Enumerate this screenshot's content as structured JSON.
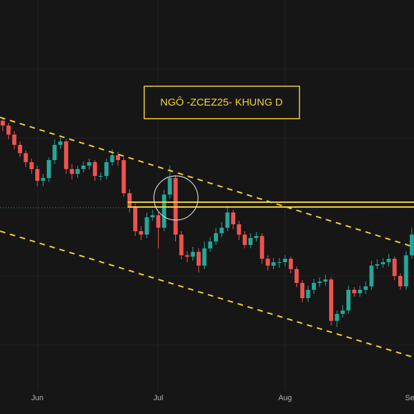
{
  "chart_data": {
    "type": "candlestick",
    "title": "NGÔ -ZCEZ25- KHUNG D",
    "categories": [
      null,
      null,
      null,
      null,
      null,
      null,
      "Jun",
      null,
      null,
      null,
      null,
      null,
      null,
      null,
      null,
      null,
      null,
      null,
      null,
      null,
      null,
      null,
      null,
      null,
      null,
      null,
      null,
      "Jul",
      null,
      null,
      null,
      null,
      null,
      null,
      null,
      null,
      null,
      null,
      null,
      null,
      null,
      null,
      null,
      null,
      null,
      null,
      null,
      null,
      null,
      "Aug",
      null,
      null,
      null,
      null,
      null,
      null,
      null,
      null,
      null,
      null,
      null,
      null,
      null,
      null,
      null,
      null,
      null,
      null,
      null,
      null,
      null,
      "Sep"
    ],
    "open": [
      425,
      418,
      405,
      390,
      378,
      365,
      355,
      338,
      342,
      368,
      390,
      395,
      355,
      348,
      355,
      360,
      365,
      345,
      345,
      365,
      375,
      368,
      320,
      300,
      265,
      260,
      285,
      288,
      270,
      318,
      342,
      260,
      230,
      228,
      235,
      215,
      240,
      250,
      262,
      270,
      292,
      275,
      260,
      245,
      255,
      258,
      225,
      215,
      220,
      220,
      225,
      210,
      190,
      168,
      180,
      190,
      192,
      195,
      135,
      145,
      150,
      180,
      175,
      180,
      185,
      215,
      217,
      220,
      225,
      200,
      185,
      230
    ],
    "high": [
      430,
      422,
      410,
      395,
      382,
      370,
      360,
      348,
      372,
      398,
      400,
      398,
      362,
      360,
      366,
      370,
      368,
      350,
      370,
      384,
      380,
      372,
      326,
      305,
      272,
      292,
      296,
      292,
      325,
      360,
      346,
      265,
      236,
      242,
      240,
      250,
      256,
      270,
      278,
      302,
      296,
      280,
      265,
      262,
      264,
      262,
      230,
      226,
      226,
      230,
      228,
      214,
      194,
      186,
      196,
      198,
      202,
      198,
      150,
      158,
      186,
      184,
      186,
      192,
      222,
      224,
      226,
      232,
      228,
      204,
      236,
      270
    ],
    "low": [
      410,
      398,
      384,
      372,
      358,
      348,
      330,
      330,
      336,
      362,
      384,
      348,
      340,
      342,
      350,
      354,
      338,
      338,
      340,
      360,
      360,
      315,
      292,
      258,
      252,
      255,
      280,
      240,
      265,
      312,
      250,
      224,
      220,
      222,
      205,
      210,
      235,
      245,
      256,
      265,
      268,
      252,
      240,
      240,
      250,
      218,
      208,
      210,
      212,
      214,
      204,
      184,
      162,
      162,
      174,
      184,
      186,
      128,
      126,
      140,
      145,
      170,
      170,
      174,
      180,
      210,
      212,
      214,
      194,
      180,
      180,
      225
    ],
    "close": [
      418,
      405,
      390,
      378,
      365,
      355,
      338,
      342,
      368,
      390,
      395,
      355,
      348,
      355,
      360,
      365,
      345,
      345,
      365,
      375,
      368,
      320,
      300,
      265,
      260,
      285,
      288,
      270,
      318,
      342,
      260,
      230,
      228,
      235,
      215,
      240,
      250,
      262,
      270,
      292,
      275,
      260,
      245,
      255,
      258,
      225,
      215,
      220,
      220,
      225,
      210,
      190,
      168,
      180,
      190,
      192,
      195,
      135,
      145,
      150,
      180,
      175,
      180,
      185,
      215,
      217,
      220,
      225,
      200,
      185,
      230,
      260
    ],
    "up_color": "#26a69a",
    "down_color": "#ef5350",
    "ylim": [
      0,
      600
    ]
  }
}
